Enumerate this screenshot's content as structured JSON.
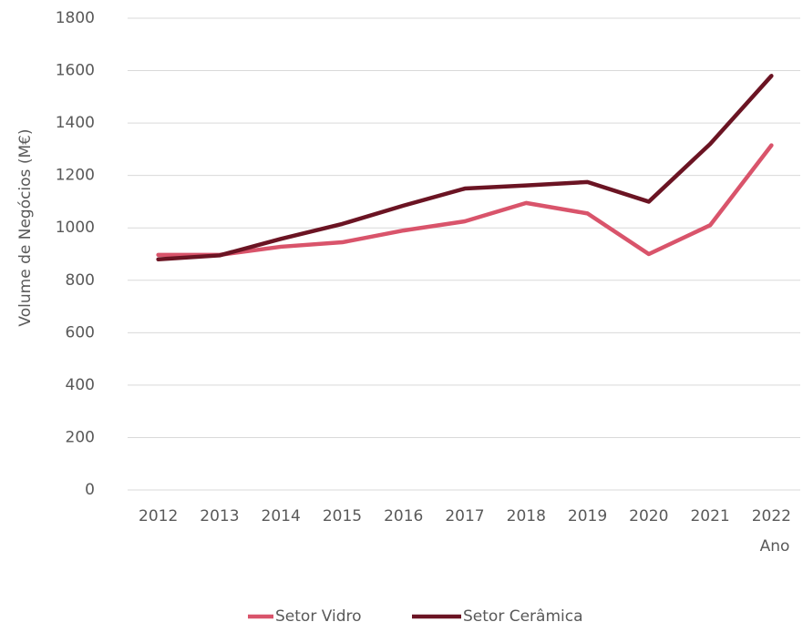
{
  "chart_data": {
    "type": "line",
    "y_label": "Volume de Negócios (M€)",
    "x_label": "Ano",
    "categories": [
      "2012",
      "2013",
      "2014",
      "2015",
      "2016",
      "2017",
      "2018",
      "2019",
      "2020",
      "2021",
      "2022"
    ],
    "series": [
      {
        "name": "Setor Vidro",
        "color": "#d9546b",
        "values": [
          897,
          897,
          928,
          945,
          990,
          1025,
          1095,
          1055,
          900,
          1010,
          1315
        ]
      },
      {
        "name": "Setor Cerâmica",
        "color": "#6b1423",
        "values": [
          880,
          895,
          958,
          1015,
          1085,
          1150,
          1162,
          1175,
          1100,
          1320,
          1580
        ]
      }
    ],
    "ylim": [
      0,
      1800
    ],
    "yticks": [
      0,
      200,
      400,
      600,
      800,
      1000,
      1200,
      1400,
      1600,
      1800
    ],
    "grid": true,
    "legend": "bottom"
  }
}
